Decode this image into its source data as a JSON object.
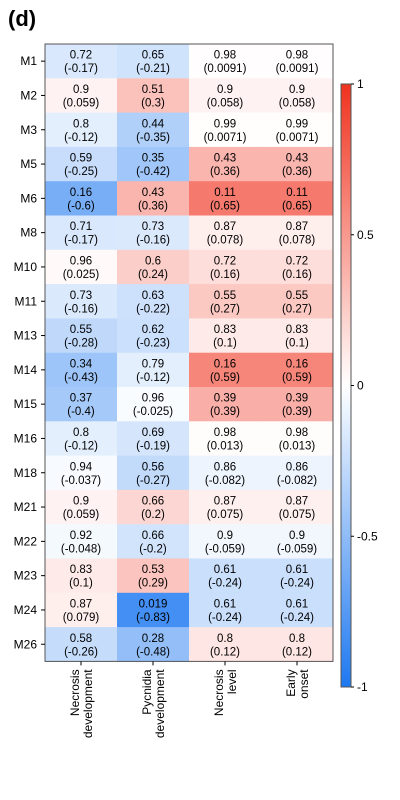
{
  "panel_label": "(d)",
  "chart_data": {
    "type": "heatmap",
    "title": "",
    "rows": [
      "M1",
      "M2",
      "M3",
      "M5",
      "M6",
      "M8",
      "M10",
      "M11",
      "M13",
      "M14",
      "M15",
      "M16",
      "M18",
      "M21",
      "M22",
      "M23",
      "M24",
      "M26"
    ],
    "columns": [
      "Necrosis development",
      "Pycnidia development",
      "Necrosis level",
      "Early onset"
    ],
    "pvalues": [
      [
        0.72,
        0.65,
        0.98,
        0.98
      ],
      [
        0.9,
        0.51,
        0.9,
        0.9
      ],
      [
        0.8,
        0.44,
        0.99,
        0.99
      ],
      [
        0.59,
        0.35,
        0.43,
        0.43
      ],
      [
        0.16,
        0.43,
        0.11,
        0.11
      ],
      [
        0.71,
        0.73,
        0.87,
        0.87
      ],
      [
        0.96,
        0.6,
        0.72,
        0.72
      ],
      [
        0.73,
        0.63,
        0.55,
        0.55
      ],
      [
        0.55,
        0.62,
        0.83,
        0.83
      ],
      [
        0.34,
        0.79,
        0.16,
        0.16
      ],
      [
        0.37,
        0.96,
        0.39,
        0.39
      ],
      [
        0.8,
        0.69,
        0.98,
        0.98
      ],
      [
        0.94,
        0.56,
        0.86,
        0.86
      ],
      [
        0.9,
        0.66,
        0.87,
        0.87
      ],
      [
        0.92,
        0.66,
        0.9,
        0.9
      ],
      [
        0.83,
        0.53,
        0.61,
        0.61
      ],
      [
        0.87,
        0.019,
        0.61,
        0.61
      ],
      [
        0.58,
        0.28,
        0.8,
        0.8
      ]
    ],
    "pvalue_labels": [
      [
        "0.72",
        "0.65",
        "0.98",
        "0.98"
      ],
      [
        "0.9",
        "0.51",
        "0.9",
        "0.9"
      ],
      [
        "0.8",
        "0.44",
        "0.99",
        "0.99"
      ],
      [
        "0.59",
        "0.35",
        "0.43",
        "0.43"
      ],
      [
        "0.16",
        "0.43",
        "0.11",
        "0.11"
      ],
      [
        "0.71",
        "0.73",
        "0.87",
        "0.87"
      ],
      [
        "0.96",
        "0.6",
        "0.72",
        "0.72"
      ],
      [
        "0.73",
        "0.63",
        "0.55",
        "0.55"
      ],
      [
        "0.55",
        "0.62",
        "0.83",
        "0.83"
      ],
      [
        "0.34",
        "0.79",
        "0.16",
        "0.16"
      ],
      [
        "0.37",
        "0.96",
        "0.39",
        "0.39"
      ],
      [
        "0.8",
        "0.69",
        "0.98",
        "0.98"
      ],
      [
        "0.94",
        "0.56",
        "0.86",
        "0.86"
      ],
      [
        "0.9",
        "0.66",
        "0.87",
        "0.87"
      ],
      [
        "0.92",
        "0.66",
        "0.9",
        "0.9"
      ],
      [
        "0.83",
        "0.53",
        "0.61",
        "0.61"
      ],
      [
        "0.87",
        "0.019",
        "0.61",
        "0.61"
      ],
      [
        "0.58",
        "0.28",
        "0.8",
        "0.8"
      ]
    ],
    "values": [
      [
        -0.17,
        -0.21,
        0.0091,
        0.0091
      ],
      [
        0.059,
        0.3,
        0.058,
        0.058
      ],
      [
        -0.12,
        -0.35,
        0.0071,
        0.0071
      ],
      [
        -0.25,
        -0.42,
        0.36,
        0.36
      ],
      [
        -0.6,
        0.36,
        0.65,
        0.65
      ],
      [
        -0.17,
        -0.16,
        0.078,
        0.078
      ],
      [
        0.025,
        0.24,
        0.16,
        0.16
      ],
      [
        -0.16,
        -0.22,
        0.27,
        0.27
      ],
      [
        -0.28,
        -0.23,
        0.1,
        0.1
      ],
      [
        -0.43,
        -0.12,
        0.59,
        0.59
      ],
      [
        -0.4,
        -0.025,
        0.39,
        0.39
      ],
      [
        -0.12,
        -0.19,
        0.013,
        0.013
      ],
      [
        -0.037,
        -0.27,
        -0.082,
        -0.082
      ],
      [
        0.059,
        0.2,
        0.075,
        0.075
      ],
      [
        -0.048,
        -0.2,
        -0.059,
        -0.059
      ],
      [
        0.1,
        0.29,
        -0.24,
        -0.24
      ],
      [
        0.079,
        -0.83,
        -0.24,
        -0.24
      ],
      [
        -0.26,
        -0.48,
        0.12,
        0.12
      ]
    ],
    "value_labels": [
      [
        "(-0.17)",
        "(-0.21)",
        "(0.0091)",
        "(0.0091)"
      ],
      [
        "(0.059)",
        "(0.3)",
        "(0.058)",
        "(0.058)"
      ],
      [
        "(-0.12)",
        "(-0.35)",
        "(0.0071)",
        "(0.0071)"
      ],
      [
        "(-0.25)",
        "(-0.42)",
        "(0.36)",
        "(0.36)"
      ],
      [
        "(-0.6)",
        "(0.36)",
        "(0.65)",
        "(0.65)"
      ],
      [
        "(-0.17)",
        "(-0.16)",
        "(0.078)",
        "(0.078)"
      ],
      [
        "(0.025)",
        "(0.24)",
        "(0.16)",
        "(0.16)"
      ],
      [
        "(-0.16)",
        "(-0.22)",
        "(0.27)",
        "(0.27)"
      ],
      [
        "(-0.28)",
        "(-0.23)",
        "(0.1)",
        "(0.1)"
      ],
      [
        "(-0.43)",
        "(-0.12)",
        "(0.59)",
        "(0.59)"
      ],
      [
        "(-0.4)",
        "(-0.025)",
        "(0.39)",
        "(0.39)"
      ],
      [
        "(-0.12)",
        "(-0.19)",
        "(0.013)",
        "(0.013)"
      ],
      [
        "(-0.037)",
        "(-0.27)",
        "(-0.082)",
        "(-0.082)"
      ],
      [
        "(0.059)",
        "(0.2)",
        "(0.075)",
        "(0.075)"
      ],
      [
        "(-0.048)",
        "(-0.2)",
        "(-0.059)",
        "(-0.059)"
      ],
      [
        "(0.1)",
        "(0.29)",
        "(-0.24)",
        "(-0.24)"
      ],
      [
        "(0.079)",
        "(-0.83)",
        "(-0.24)",
        "(-0.24)"
      ],
      [
        "(-0.26)",
        "(-0.48)",
        "(0.12)",
        "(0.12)"
      ]
    ],
    "color_range": [
      -1,
      1
    ],
    "colorbar_ticks": [
      "1",
      "0.5",
      "0",
      "-0.5",
      "-1"
    ],
    "colorbar_tick_values": [
      1,
      0.5,
      0,
      -0.5,
      -1
    ],
    "colors": {
      "negative": "#1e78f0",
      "zero": "#ffffff",
      "positive": "#f0321e"
    }
  }
}
